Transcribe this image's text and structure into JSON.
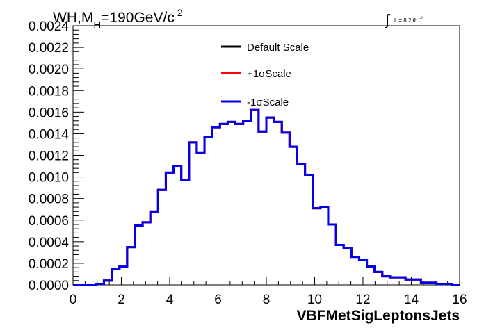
{
  "chart_data": {
    "type": "line",
    "title": "WH,M_H=190GeV/c^2",
    "title_parts": {
      "main": "WH,M",
      "sub": "H",
      "rest": "=190GeV/c",
      "sup": "2"
    },
    "lumi_label": {
      "prefix": "∫",
      "text": "L = 8.2 fb",
      "sup": "-1"
    },
    "xlabel": "VBFMetSigLeptonsJets",
    "ylabel": "",
    "xlim": [
      0,
      16
    ],
    "ylim": [
      0,
      0.0024
    ],
    "x_ticks": [
      "0",
      "2",
      "4",
      "6",
      "8",
      "10",
      "12",
      "14",
      "16"
    ],
    "y_ticks": [
      "0.0000",
      "0.0002",
      "0.0004",
      "0.0006",
      "0.0008",
      "0.0010",
      "0.0012",
      "0.0014",
      "0.0016",
      "0.0018",
      "0.0020",
      "0.0022",
      "0.0024"
    ],
    "grid": false,
    "legend_position": "top-center",
    "bin_edges": [
      0,
      0.32,
      0.64,
      0.96,
      1.28,
      1.6,
      1.92,
      2.24,
      2.56,
      2.88,
      3.2,
      3.52,
      3.84,
      4.16,
      4.48,
      4.8,
      5.12,
      5.44,
      5.76,
      6.08,
      6.4,
      6.72,
      7.04,
      7.36,
      7.68,
      8.0,
      8.32,
      8.64,
      8.96,
      9.28,
      9.6,
      9.92,
      10.24,
      10.56,
      10.88,
      11.2,
      11.52,
      11.84,
      12.16,
      12.48,
      12.8,
      13.12,
      13.44,
      13.76,
      14.08,
      14.4,
      14.72,
      15.04,
      15.36,
      15.68,
      16.0
    ],
    "series": [
      {
        "name": "Default Scale",
        "color": "#000000",
        "values": [
          0.0,
          0.0,
          0.0,
          1e-05,
          4e-05,
          0.00015,
          0.00017,
          0.00035,
          0.00055,
          0.00058,
          0.00068,
          0.00088,
          0.00104,
          0.0011,
          0.00097,
          0.00132,
          0.00122,
          0.00137,
          0.00146,
          0.00149,
          0.00151,
          0.00149,
          0.00152,
          0.00162,
          0.00142,
          0.00155,
          0.00151,
          0.00141,
          0.00128,
          0.00112,
          0.00102,
          0.00071,
          0.00072,
          0.00056,
          0.00037,
          0.00034,
          0.00026,
          0.00023,
          0.00017,
          0.00012,
          8e-05,
          7e-05,
          7e-05,
          5e-05,
          5e-05,
          2e-05,
          2e-05,
          1e-05,
          1e-05,
          0.0
        ]
      },
      {
        "name": "+1σScale",
        "color": "#ff0000",
        "values": [
          0.0,
          0.0,
          0.0,
          1e-05,
          4e-05,
          0.00015,
          0.00017,
          0.00035,
          0.00055,
          0.00058,
          0.00068,
          0.00088,
          0.00104,
          0.0011,
          0.00097,
          0.00132,
          0.00122,
          0.00137,
          0.00146,
          0.00149,
          0.00151,
          0.00149,
          0.00152,
          0.00162,
          0.00142,
          0.00155,
          0.00151,
          0.00141,
          0.00128,
          0.00112,
          0.00102,
          0.00071,
          0.00072,
          0.00056,
          0.00037,
          0.00034,
          0.00026,
          0.00023,
          0.00017,
          0.00012,
          8e-05,
          7e-05,
          7e-05,
          5e-05,
          5e-05,
          2e-05,
          2e-05,
          1e-05,
          1e-05,
          0.0
        ]
      },
      {
        "name": "-1σScale",
        "color": "#0000ee",
        "values": [
          0.0,
          0.0,
          0.0,
          1e-05,
          4e-05,
          0.00015,
          0.00017,
          0.00035,
          0.00055,
          0.00058,
          0.00068,
          0.00088,
          0.00104,
          0.0011,
          0.00097,
          0.00132,
          0.00122,
          0.00137,
          0.00146,
          0.00149,
          0.00151,
          0.00149,
          0.00152,
          0.00162,
          0.00142,
          0.00155,
          0.00151,
          0.00141,
          0.00128,
          0.00112,
          0.00102,
          0.00071,
          0.00072,
          0.00056,
          0.00037,
          0.00034,
          0.00026,
          0.00023,
          0.00017,
          0.00012,
          8e-05,
          7e-05,
          7e-05,
          5e-05,
          5e-05,
          2e-05,
          2e-05,
          1e-05,
          1e-05,
          0.0
        ]
      }
    ]
  }
}
